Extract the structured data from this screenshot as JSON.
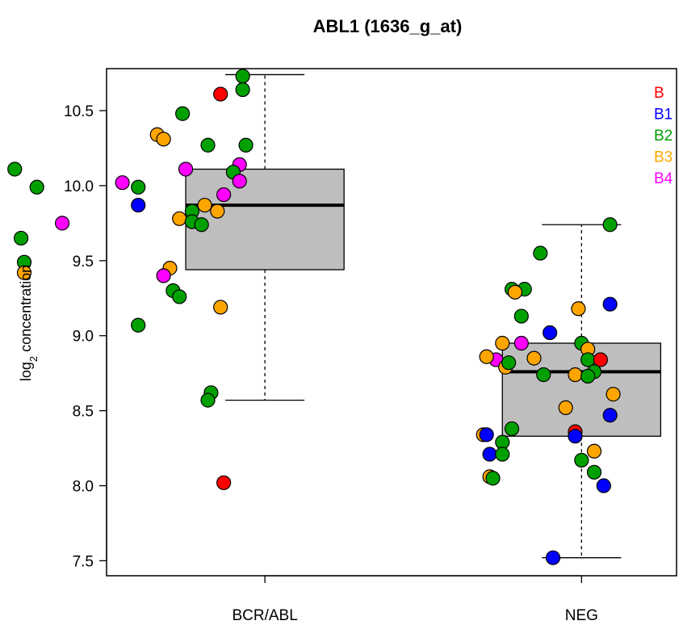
{
  "chart_data": {
    "type": "boxplot",
    "title": "ABL1 (1636_g_at)",
    "xlabel": "",
    "ylabel": "log2 concentration",
    "ylabel_main": "log",
    "ylabel_sub": "2",
    "ylabel_rest": " concentration",
    "ylim": [
      7.4,
      10.78
    ],
    "yticks": [
      7.5,
      8.0,
      8.5,
      9.0,
      9.5,
      10.0,
      10.5
    ],
    "ytick_labels": [
      "7.5",
      "8.0",
      "8.5",
      "9.0",
      "9.5",
      "10.0",
      "10.5"
    ],
    "categories": [
      "BCR/ABL",
      "NEG"
    ],
    "colors": {
      "B": "#ff0000",
      "B1": "#0000ff",
      "B2": "#00a000",
      "B3": "#ffa500",
      "B4": "#ff00ff"
    },
    "legend": {
      "placement": "top-right",
      "entries": [
        {
          "label": "B",
          "color": "#ff0000"
        },
        {
          "label": "B1",
          "color": "#0000ff"
        },
        {
          "label": "B2",
          "color": "#00a000"
        },
        {
          "label": "B3",
          "color": "#ffa500"
        },
        {
          "label": "B4",
          "color": "#ff00ff"
        }
      ]
    },
    "boxes": [
      {
        "category": "BCR/ABL",
        "whisker_low": 8.57,
        "q1": 9.44,
        "median": 9.87,
        "q3": 10.11,
        "whisker_high": 10.74
      },
      {
        "category": "NEG",
        "whisker_low": 7.52,
        "q1": 8.33,
        "median": 8.76,
        "q3": 8.95,
        "whisker_high": 9.74
      }
    ],
    "points": [
      {
        "category": "BCR/ABL",
        "x": 0.93,
        "y": 10.73,
        "group": "B2"
      },
      {
        "category": "BCR/ABL",
        "x": 0.93,
        "y": 10.64,
        "group": "B2"
      },
      {
        "category": "BCR/ABL",
        "x": 0.86,
        "y": 10.61,
        "group": "B"
      },
      {
        "category": "BCR/ABL",
        "x": 0.74,
        "y": 10.48,
        "group": "B2"
      },
      {
        "category": "BCR/ABL",
        "x": 0.66,
        "y": 10.34,
        "group": "B3"
      },
      {
        "category": "BCR/ABL",
        "x": 0.68,
        "y": 10.31,
        "group": "B3"
      },
      {
        "category": "BCR/ABL",
        "x": 0.82,
        "y": 10.27,
        "group": "B2"
      },
      {
        "category": "BCR/ABL",
        "x": 0.94,
        "y": 10.27,
        "group": "B2"
      },
      {
        "category": "BCR/ABL",
        "x": 0.92,
        "y": 10.14,
        "group": "B4"
      },
      {
        "category": "BCR/ABL",
        "x": 0.21,
        "y": 10.11,
        "group": "B2"
      },
      {
        "category": "BCR/ABL",
        "x": 0.75,
        "y": 10.11,
        "group": "B4"
      },
      {
        "category": "BCR/ABL",
        "x": 0.9,
        "y": 10.09,
        "group": "B2"
      },
      {
        "category": "BCR/ABL",
        "x": 0.92,
        "y": 10.03,
        "group": "B4"
      },
      {
        "category": "BCR/ABL",
        "x": 0.55,
        "y": 10.02,
        "group": "B4"
      },
      {
        "category": "BCR/ABL",
        "x": 0.28,
        "y": 9.99,
        "group": "B2"
      },
      {
        "category": "BCR/ABL",
        "x": 0.6,
        "y": 9.99,
        "group": "B2"
      },
      {
        "category": "BCR/ABL",
        "x": 0.87,
        "y": 9.94,
        "group": "B4"
      },
      {
        "category": "BCR/ABL",
        "x": 0.81,
        "y": 9.87,
        "group": "B3"
      },
      {
        "category": "BCR/ABL",
        "x": 0.6,
        "y": 9.87,
        "group": "B1"
      },
      {
        "category": "BCR/ABL",
        "x": 0.85,
        "y": 9.83,
        "group": "B3"
      },
      {
        "category": "BCR/ABL",
        "x": 0.77,
        "y": 9.83,
        "group": "B2"
      },
      {
        "category": "BCR/ABL",
        "x": 0.73,
        "y": 9.78,
        "group": "B3"
      },
      {
        "category": "BCR/ABL",
        "x": 0.77,
        "y": 9.76,
        "group": "B2"
      },
      {
        "category": "BCR/ABL",
        "x": 0.8,
        "y": 9.74,
        "group": "B2"
      },
      {
        "category": "BCR/ABL",
        "x": 0.36,
        "y": 9.75,
        "group": "B4"
      },
      {
        "category": "BCR/ABL",
        "x": 0.23,
        "y": 9.65,
        "group": "B2"
      },
      {
        "category": "BCR/ABL",
        "x": 0.24,
        "y": 9.49,
        "group": "B2"
      },
      {
        "category": "BCR/ABL",
        "x": 0.7,
        "y": 9.45,
        "group": "B3"
      },
      {
        "category": "BCR/ABL",
        "x": 0.24,
        "y": 9.42,
        "group": "B3"
      },
      {
        "category": "BCR/ABL",
        "x": 0.68,
        "y": 9.4,
        "group": "B4"
      },
      {
        "category": "BCR/ABL",
        "x": 0.71,
        "y": 9.3,
        "group": "B2"
      },
      {
        "category": "BCR/ABL",
        "x": 0.73,
        "y": 9.26,
        "group": "B2"
      },
      {
        "category": "BCR/ABL",
        "x": 0.86,
        "y": 9.19,
        "group": "B3"
      },
      {
        "category": "BCR/ABL",
        "x": 0.6,
        "y": 9.07,
        "group": "B2"
      },
      {
        "category": "BCR/ABL",
        "x": 0.83,
        "y": 8.62,
        "group": "B2"
      },
      {
        "category": "BCR/ABL",
        "x": 0.82,
        "y": 8.57,
        "group": "B2"
      },
      {
        "category": "BCR/ABL",
        "x": 0.87,
        "y": 8.02,
        "group": "B"
      },
      {
        "category": "NEG",
        "x": 2.09,
        "y": 9.74,
        "group": "B2"
      },
      {
        "category": "NEG",
        "x": 1.87,
        "y": 9.55,
        "group": "B2"
      },
      {
        "category": "NEG",
        "x": 1.78,
        "y": 9.31,
        "group": "B2"
      },
      {
        "category": "NEG",
        "x": 1.82,
        "y": 9.31,
        "group": "B2"
      },
      {
        "category": "NEG",
        "x": 1.79,
        "y": 9.29,
        "group": "B3"
      },
      {
        "category": "NEG",
        "x": 1.99,
        "y": 9.18,
        "group": "B3"
      },
      {
        "category": "NEG",
        "x": 2.09,
        "y": 9.21,
        "group": "B1"
      },
      {
        "category": "NEG",
        "x": 1.81,
        "y": 9.13,
        "group": "B2"
      },
      {
        "category": "NEG",
        "x": 1.9,
        "y": 9.02,
        "group": "B1"
      },
      {
        "category": "NEG",
        "x": 1.75,
        "y": 8.95,
        "group": "B3"
      },
      {
        "category": "NEG",
        "x": 1.81,
        "y": 8.95,
        "group": "B4"
      },
      {
        "category": "NEG",
        "x": 2.0,
        "y": 8.95,
        "group": "B2"
      },
      {
        "category": "NEG",
        "x": 2.02,
        "y": 8.91,
        "group": "B3"
      },
      {
        "category": "NEG",
        "x": 1.73,
        "y": 8.84,
        "group": "B4"
      },
      {
        "category": "NEG",
        "x": 2.02,
        "y": 8.84,
        "group": "B2"
      },
      {
        "category": "NEG",
        "x": 1.85,
        "y": 8.85,
        "group": "B3"
      },
      {
        "category": "NEG",
        "x": 1.7,
        "y": 8.86,
        "group": "B3"
      },
      {
        "category": "NEG",
        "x": 1.76,
        "y": 8.79,
        "group": "B3"
      },
      {
        "category": "NEG",
        "x": 1.77,
        "y": 8.82,
        "group": "B2"
      },
      {
        "category": "NEG",
        "x": 2.06,
        "y": 8.84,
        "group": "B"
      },
      {
        "category": "NEG",
        "x": 1.88,
        "y": 8.74,
        "group": "B2"
      },
      {
        "category": "NEG",
        "x": 1.98,
        "y": 8.74,
        "group": "B3"
      },
      {
        "category": "NEG",
        "x": 2.04,
        "y": 8.76,
        "group": "B2"
      },
      {
        "category": "NEG",
        "x": 2.02,
        "y": 8.73,
        "group": "B2"
      },
      {
        "category": "NEG",
        "x": 2.1,
        "y": 8.61,
        "group": "B3"
      },
      {
        "category": "NEG",
        "x": 1.95,
        "y": 8.52,
        "group": "B3"
      },
      {
        "category": "NEG",
        "x": 2.09,
        "y": 8.47,
        "group": "B1"
      },
      {
        "category": "NEG",
        "x": 1.78,
        "y": 8.38,
        "group": "B2"
      },
      {
        "category": "NEG",
        "x": 1.98,
        "y": 8.36,
        "group": "B"
      },
      {
        "category": "NEG",
        "x": 1.69,
        "y": 8.34,
        "group": "B3"
      },
      {
        "category": "NEG",
        "x": 1.7,
        "y": 8.34,
        "group": "B1"
      },
      {
        "category": "NEG",
        "x": 1.98,
        "y": 8.33,
        "group": "B1"
      },
      {
        "category": "NEG",
        "x": 1.75,
        "y": 8.29,
        "group": "B2"
      },
      {
        "category": "NEG",
        "x": 2.04,
        "y": 8.23,
        "group": "B3"
      },
      {
        "category": "NEG",
        "x": 1.71,
        "y": 8.21,
        "group": "B1"
      },
      {
        "category": "NEG",
        "x": 1.75,
        "y": 8.21,
        "group": "B2"
      },
      {
        "category": "NEG",
        "x": 2.0,
        "y": 8.17,
        "group": "B2"
      },
      {
        "category": "NEG",
        "x": 2.04,
        "y": 8.09,
        "group": "B2"
      },
      {
        "category": "NEG",
        "x": 1.71,
        "y": 8.06,
        "group": "B3"
      },
      {
        "category": "NEG",
        "x": 1.72,
        "y": 8.05,
        "group": "B2"
      },
      {
        "category": "NEG",
        "x": 2.07,
        "y": 8.0,
        "group": "B1"
      },
      {
        "category": "NEG",
        "x": 1.91,
        "y": 7.52,
        "group": "B1"
      }
    ]
  }
}
